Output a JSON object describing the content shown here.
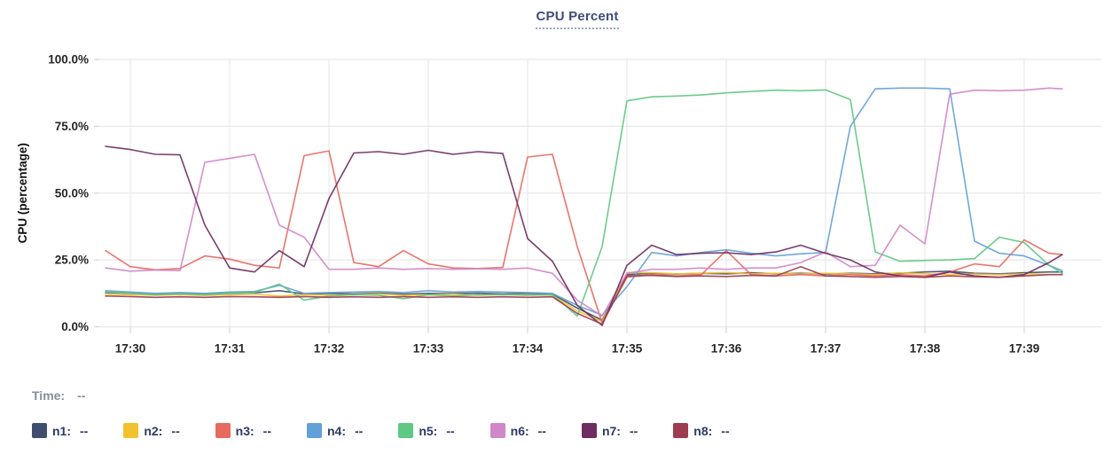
{
  "title": {
    "text": "CPU Percent"
  },
  "time_readout": {
    "label": "Time:",
    "value": "--"
  },
  "legend_value_placeholder": "--",
  "colors": {
    "grid": "#e9e9e9",
    "tick_stub": "#d8d8d8",
    "axis_text": "#262626",
    "axis_title_text": "#111111",
    "title_text": "#3d4d78",
    "title_underline": "#97a3c4",
    "legend_label": "#2c3a64",
    "time_label": "#878d9b"
  },
  "chart_data": {
    "type": "line",
    "title": "CPU Percent",
    "xlabel": "",
    "ylabel": "CPU (percentage)",
    "ylim": [
      0,
      100
    ],
    "grid": true,
    "legend_position": "bottom",
    "y_ticks": [
      {
        "value": 0,
        "label": "0.0%"
      },
      {
        "value": 25,
        "label": "25.0%"
      },
      {
        "value": 50,
        "label": "50.0%"
      },
      {
        "value": 75,
        "label": "75.0%"
      },
      {
        "value": 100,
        "label": "100.0%"
      }
    ],
    "x_tick_labels": [
      "17:30",
      "17:31",
      "17:32",
      "17:33",
      "17:34",
      "17:35",
      "17:36",
      "17:37",
      "17:38",
      "17:39"
    ],
    "x_offsets_seconds": [
      -15,
      0,
      15,
      30,
      45,
      60,
      75,
      90,
      105,
      120,
      135,
      150,
      165,
      180,
      195,
      210,
      225,
      240,
      255,
      270,
      285,
      300,
      315,
      330,
      345,
      360,
      375,
      390,
      405,
      420,
      435,
      450,
      465,
      480,
      495,
      510,
      525,
      540,
      555,
      563
    ],
    "series": [
      {
        "name": "n1",
        "color": "#3f4e6d",
        "values": [
          12.8,
          12.5,
          12.2,
          12.4,
          12.2,
          12.5,
          12.7,
          13.5,
          12.3,
          12.5,
          12.3,
          12.6,
          12.2,
          12.5,
          12.4,
          12.6,
          12.3,
          12.5,
          12.2,
          7,
          2.5,
          19.5,
          20,
          19.7,
          20,
          19.8,
          20.2,
          19.8,
          20,
          19.7,
          20,
          19.8,
          20,
          20.5,
          20.8,
          20,
          19.8,
          20.2,
          20.5,
          20.5
        ]
      },
      {
        "name": "n2",
        "color": "#f2c12e",
        "values": [
          12.2,
          12,
          11.8,
          12,
          11.7,
          12,
          12.2,
          11.5,
          12,
          11.8,
          12,
          12.3,
          11.8,
          12,
          12.2,
          11.8,
          12,
          12,
          11.8,
          6,
          2,
          20.3,
          20.2,
          19.8,
          20,
          20.3,
          19.8,
          20,
          19.7,
          20,
          19.8,
          19.5,
          20.2,
          19.8,
          19.5,
          19.7,
          19.5,
          19.8,
          19.5,
          19.5
        ]
      },
      {
        "name": "n3",
        "color": "#e8695f",
        "values": [
          28.5,
          22.5,
          21.3,
          21.8,
          26.5,
          25.3,
          23,
          22,
          64,
          65.8,
          24,
          22.5,
          28.5,
          23.5,
          22,
          21.8,
          22.2,
          63.5,
          64.5,
          30,
          1.5,
          18.5,
          19.5,
          19,
          19.5,
          28.5,
          19.5,
          19,
          19.5,
          19,
          19.5,
          19,
          19.5,
          19,
          20.5,
          23.5,
          22.5,
          32.5,
          27.5,
          27
        ]
      },
      {
        "name": "n4",
        "color": "#64a0d8",
        "values": [
          13.5,
          13,
          12.5,
          12.8,
          12.5,
          13,
          13.2,
          15.5,
          12.5,
          12.8,
          13,
          13.2,
          12.8,
          13.5,
          13,
          13.2,
          13,
          12.8,
          12.5,
          8,
          4.3,
          15,
          27.8,
          26.5,
          27.8,
          28.8,
          27.5,
          26.5,
          27.3,
          27.8,
          75,
          89,
          89.3,
          89.3,
          89,
          32,
          27.5,
          26.5,
          23,
          21
        ]
      },
      {
        "name": "n5",
        "color": "#5fc883",
        "values": [
          13,
          12.5,
          12,
          12.3,
          12,
          12.5,
          12.8,
          16,
          10,
          11.5,
          12,
          11.8,
          10.5,
          12,
          11.5,
          12,
          12,
          11.8,
          12,
          4,
          30,
          84.5,
          86,
          86.3,
          86.7,
          87.5,
          88,
          88.5,
          88.3,
          88.6,
          85,
          28,
          24.5,
          24.8,
          25,
          25.5,
          33.5,
          31.5,
          23,
          20
        ]
      },
      {
        "name": "n6",
        "color": "#d186c9",
        "values": [
          22,
          20.8,
          21.2,
          21,
          61.5,
          63,
          64.5,
          38,
          33.5,
          21.5,
          21.5,
          22,
          21.5,
          21.8,
          21.5,
          21.7,
          21.5,
          22,
          20,
          10,
          4,
          20,
          21.5,
          21.5,
          22,
          21.5,
          22,
          22,
          24,
          28,
          22.5,
          23,
          38,
          31,
          87,
          88.5,
          88.3,
          88.5,
          89.3,
          89
        ]
      },
      {
        "name": "n7",
        "color": "#6f2c60",
        "values": [
          67.5,
          66.3,
          64.5,
          64.3,
          38,
          22,
          20.5,
          28.5,
          22.5,
          48,
          65,
          65.5,
          64.5,
          66,
          64.5,
          65.5,
          64.8,
          33,
          24.5,
          8,
          0.5,
          23,
          30.5,
          27,
          27.5,
          27.7,
          27,
          28,
          30.5,
          27.5,
          25,
          20.5,
          19,
          18.5,
          20.5,
          19,
          18.5,
          19.5,
          24,
          27
        ]
      },
      {
        "name": "n8",
        "color": "#9e3c50",
        "values": [
          11.5,
          11.3,
          11,
          11.2,
          11,
          11.3,
          11.2,
          11,
          11.3,
          11,
          11.2,
          11,
          11.3,
          11,
          11.2,
          11,
          11.2,
          11,
          11.2,
          5,
          1,
          19,
          19.2,
          18.8,
          19,
          18.8,
          19.2,
          19,
          22.5,
          19,
          18.8,
          18.5,
          18.8,
          18.5,
          19,
          18.7,
          18.5,
          19,
          19.5,
          19.5
        ]
      }
    ]
  }
}
